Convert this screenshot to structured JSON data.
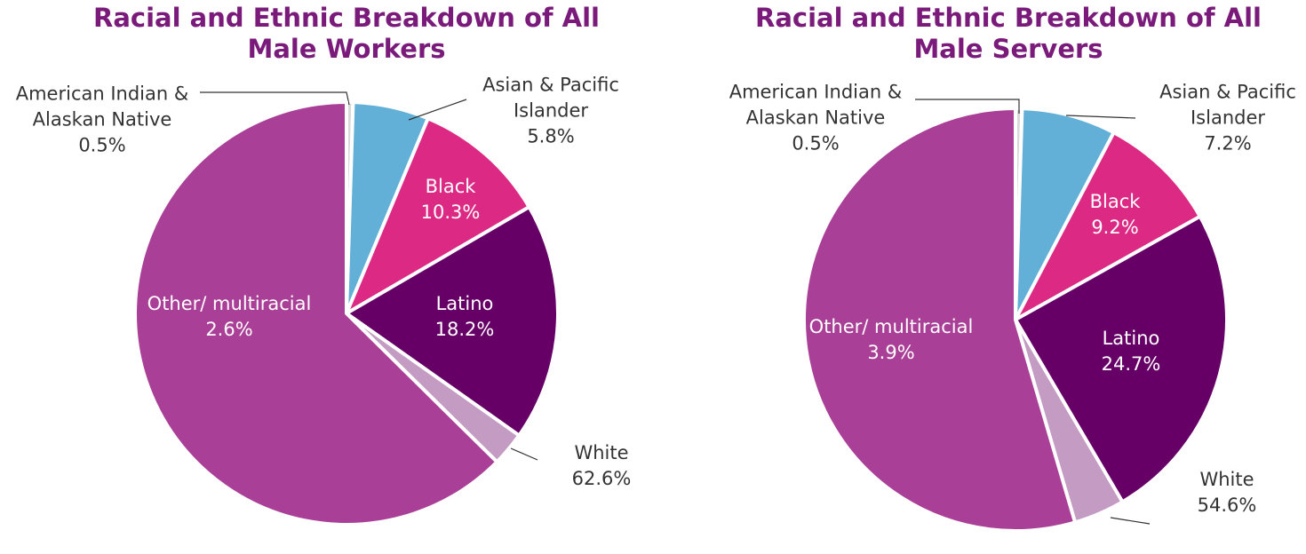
{
  "chart_data": [
    {
      "type": "pie",
      "title": "Racial and Ethnic Breakdown of All Male Workers",
      "categories": [
        "American Indian & Alaskan Native",
        "Asian & Pacific Islander",
        "Black",
        "Latino",
        "Other/ multiracial",
        "White"
      ],
      "values": [
        0.5,
        5.8,
        10.3,
        18.2,
        2.6,
        62.6
      ],
      "value_labels": [
        "0.5%",
        "5.8%",
        "10.3%",
        "18.2%",
        "2.6%",
        "62.6%"
      ],
      "colors": [
        "#d9d9d9",
        "#62b0d8",
        "#dc2a84",
        "#660066",
        "#c49bc2",
        "#a93f97"
      ]
    },
    {
      "type": "pie",
      "title": "Racial and Ethnic Breakdown of All Male Servers",
      "categories": [
        "American Indian & Alaskan Native",
        "Asian & Pacific Islander",
        "Black",
        "Latino",
        "Other/ multiracial",
        "White"
      ],
      "values": [
        0.5,
        7.2,
        9.2,
        24.7,
        3.9,
        54.6
      ],
      "value_labels": [
        "0.5%",
        "7.2%",
        "9.2%",
        "24.7%",
        "3.9%",
        "54.6%"
      ],
      "colors": [
        "#d9d9d9",
        "#62b0d8",
        "#dc2a84",
        "#660066",
        "#c49bc2",
        "#a93f97"
      ]
    }
  ]
}
